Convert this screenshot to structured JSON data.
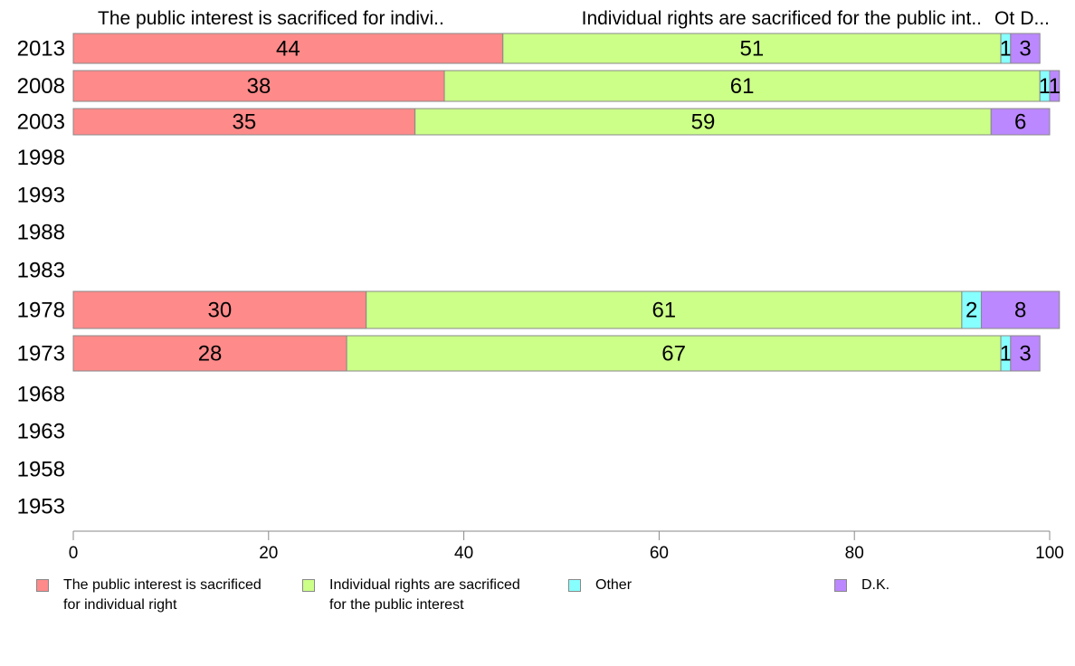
{
  "chart_data": {
    "type": "bar",
    "orientation": "horizontal",
    "stacked": true,
    "categories": [
      "2013",
      "2008",
      "2003",
      "1998",
      "1993",
      "1988",
      "1983",
      "1978",
      "1973",
      "1968",
      "1963",
      "1958",
      "1953"
    ],
    "series": [
      {
        "name": "The public interest is sacrificed for individual right",
        "color": "#ff8a8a",
        "values": [
          44,
          38,
          35,
          null,
          null,
          null,
          null,
          30,
          28,
          null,
          null,
          null,
          null
        ],
        "labels": [
          "44",
          "38",
          "35",
          null,
          null,
          null,
          null,
          "30",
          "28",
          null,
          null,
          null,
          null
        ]
      },
      {
        "name": "Individual rights are sacrificed for the public interest",
        "color": "#ccff88",
        "values": [
          51,
          61,
          59,
          null,
          null,
          null,
          null,
          61,
          67,
          null,
          null,
          null,
          null
        ],
        "labels": [
          "51",
          "61",
          "59",
          null,
          null,
          null,
          null,
          "61",
          "67",
          null,
          null,
          null,
          null
        ]
      },
      {
        "name": "Other",
        "color": "#88ffff",
        "values": [
          1,
          1,
          0,
          null,
          null,
          null,
          null,
          2,
          1,
          null,
          null,
          null,
          null
        ],
        "labels": [
          "1",
          "1",
          null,
          null,
          null,
          null,
          null,
          "2",
          "1",
          null,
          null,
          null,
          null
        ]
      },
      {
        "name": "D.K.",
        "color": "#bb88ff",
        "values": [
          3,
          1,
          6,
          null,
          null,
          null,
          null,
          8,
          3,
          null,
          null,
          null,
          null
        ],
        "labels": [
          "3",
          "1",
          "6",
          null,
          null,
          null,
          null,
          "8",
          "3",
          null,
          null,
          null,
          null
        ]
      }
    ],
    "column_headers": [
      "The public interest is sacrificed for indivi..",
      "Individual rights are sacrificed for the public int..",
      "Ot",
      "D..."
    ],
    "xlim": [
      0,
      100
    ],
    "xticks": [
      "0",
      "20",
      "40",
      "60",
      "80",
      "100"
    ],
    "legend": {
      "position": "bottom",
      "items": [
        {
          "label": "The public interest is sacrificed\nfor individual right",
          "color": "#ff8a8a"
        },
        {
          "label": "Individual rights are sacrificed\nfor the public interest",
          "color": "#ccff88"
        },
        {
          "label": "Other",
          "color": "#88ffff"
        },
        {
          "label": "D.K.",
          "color": "#bb88ff"
        }
      ]
    },
    "grid": false
  }
}
